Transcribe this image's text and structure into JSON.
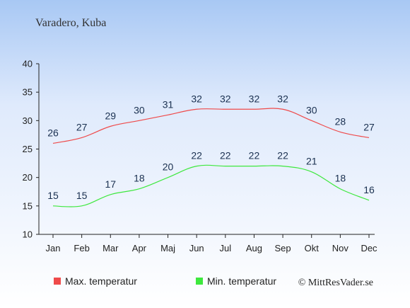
{
  "chart_data": {
    "type": "line",
    "title": "Varadero, Kuba",
    "categories": [
      "Jan",
      "Feb",
      "Mar",
      "Apr",
      "Maj",
      "Jun",
      "Jul",
      "Aug",
      "Sep",
      "Okt",
      "Nov",
      "Dec"
    ],
    "ylim": [
      10,
      40
    ],
    "yticks": [
      10,
      15,
      20,
      25,
      30,
      35,
      40
    ],
    "xlabel": "",
    "ylabel": "",
    "grid": false,
    "legend_position": "bottom",
    "series": [
      {
        "name": "Max. temperatur",
        "color": "#ef4a4a",
        "values": [
          26,
          27,
          29,
          30,
          31,
          32,
          32,
          32,
          32,
          30,
          28,
          27
        ]
      },
      {
        "name": "Min. temperatur",
        "color": "#3ee83e",
        "values": [
          15,
          15,
          17,
          18,
          20,
          22,
          22,
          22,
          22,
          21,
          18,
          16
        ]
      }
    ]
  },
  "copyright": "© MittResVader.se",
  "colors": {
    "axis": "#222222",
    "label": "#1a3050",
    "title": "#333333"
  }
}
